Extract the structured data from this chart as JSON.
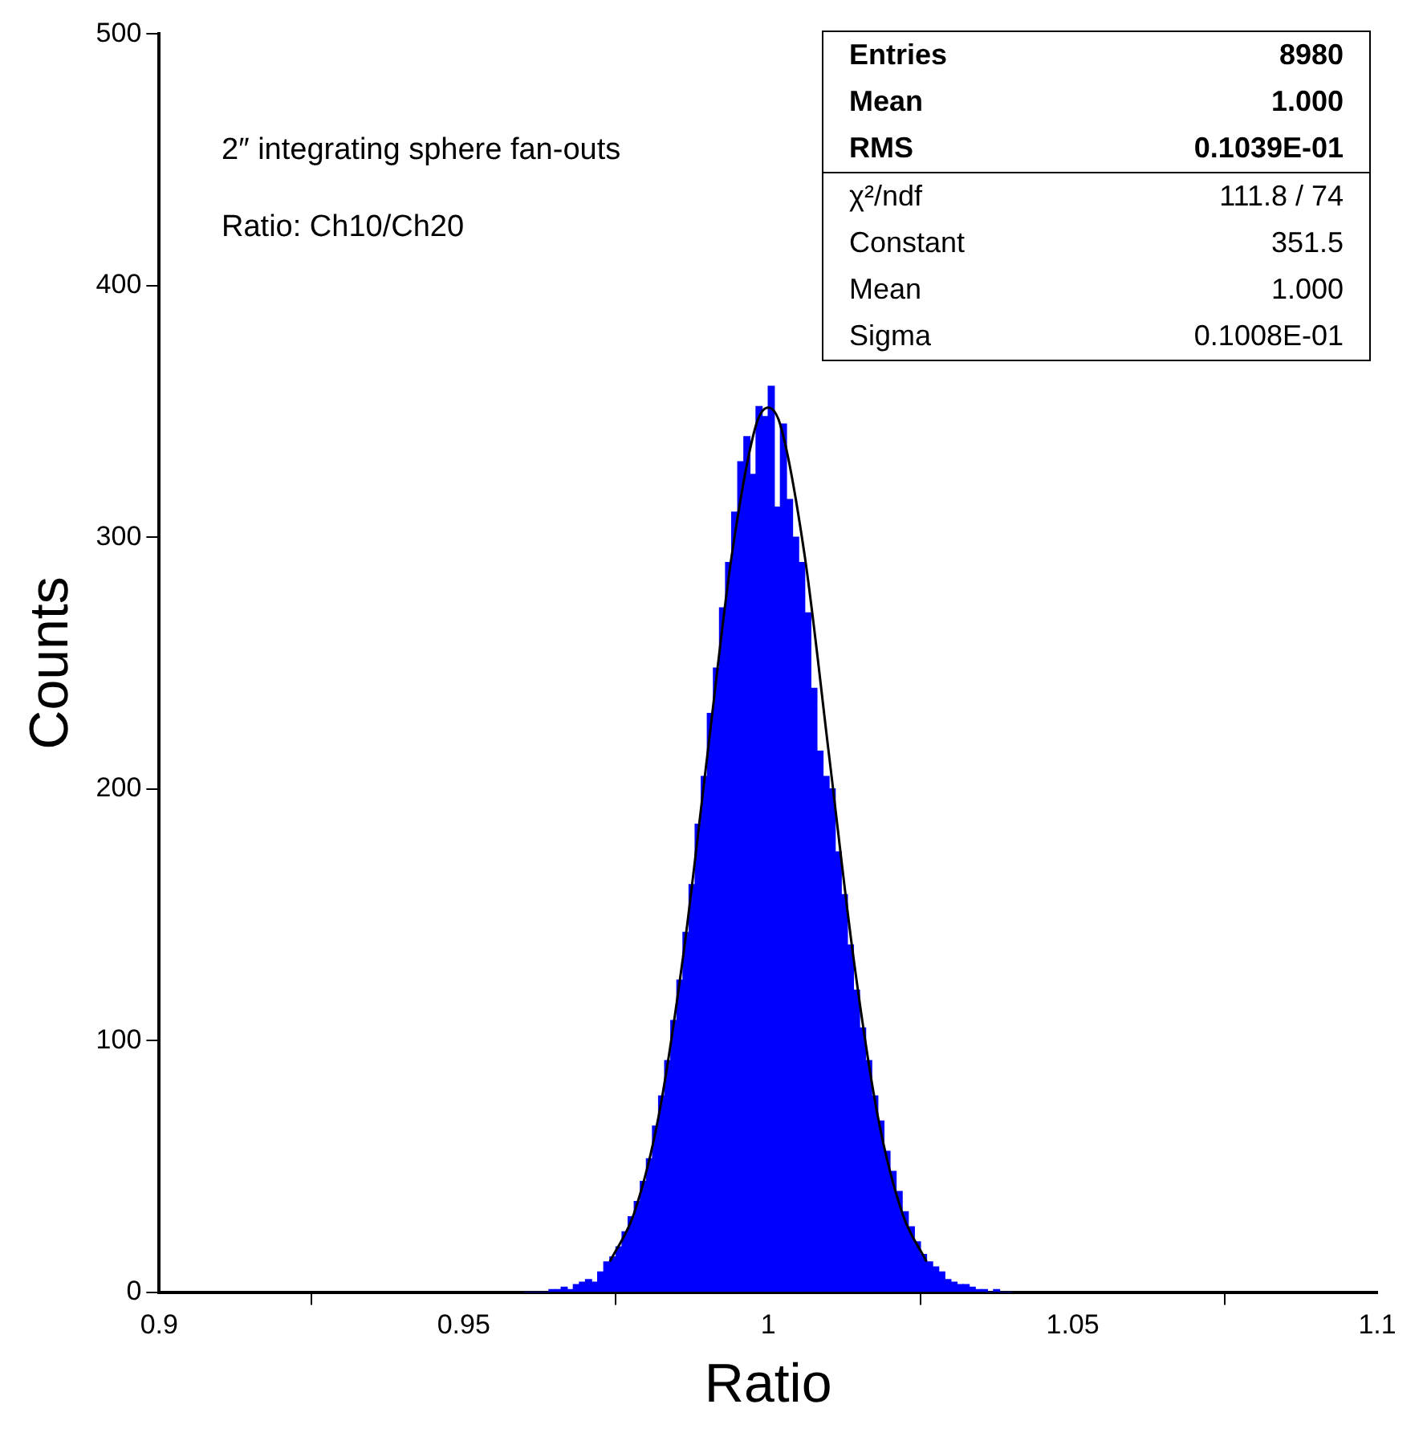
{
  "chart_data": {
    "type": "histogram",
    "xlabel": "Ratio",
    "ylabel": "Counts",
    "bins": [
      0.96,
      0.961,
      0.962,
      0.963,
      0.964,
      0.965,
      0.966,
      0.967,
      0.968,
      0.969,
      0.97,
      0.971,
      0.972,
      0.973,
      0.974,
      0.975,
      0.976,
      0.977,
      0.978,
      0.979,
      0.98,
      0.981,
      0.982,
      0.983,
      0.984,
      0.985,
      0.986,
      0.987,
      0.988,
      0.989,
      0.99,
      0.991,
      0.992,
      0.993,
      0.994,
      0.995,
      0.996,
      0.997,
      0.998,
      0.999,
      1.0,
      1.001,
      1.002,
      1.003,
      1.004,
      1.005,
      1.006,
      1.007,
      1.008,
      1.009,
      1.01,
      1.011,
      1.012,
      1.013,
      1.014,
      1.015,
      1.016,
      1.017,
      1.018,
      1.019,
      1.02,
      1.021,
      1.022,
      1.023,
      1.024,
      1.025,
      1.026,
      1.027,
      1.028,
      1.029,
      1.03,
      1.031,
      1.032,
      1.033,
      1.034,
      1.035,
      1.036,
      1.037,
      1.038,
      1.039,
      1.04
    ],
    "values": [
      0,
      0,
      0,
      0,
      1,
      1,
      2,
      1,
      3,
      4,
      5,
      4,
      8,
      12,
      14,
      18,
      24,
      30,
      36,
      44,
      53,
      66,
      78,
      92,
      108,
      124,
      143,
      162,
      186,
      205,
      230,
      248,
      272,
      290,
      310,
      330,
      340,
      325,
      352,
      348,
      360,
      312,
      345,
      315,
      300,
      290,
      270,
      240,
      215,
      205,
      200,
      175,
      158,
      138,
      120,
      105,
      92,
      78,
      68,
      56,
      48,
      40,
      32,
      26,
      20,
      15,
      12,
      10,
      8,
      5,
      4,
      3,
      3,
      2,
      1,
      1,
      0,
      1,
      0,
      0
    ],
    "color": "#0000ff",
    "series": [
      {
        "type": "line",
        "color": "#000000",
        "x": [
          0.974,
          0.978,
          0.982,
          0.986,
          0.99,
          0.994,
          0.998,
          1.0,
          1.002,
          1.006,
          1.01,
          1.014,
          1.018,
          1.022,
          1.026
        ],
        "values": [
          12.1,
          31.5,
          69.8,
          132.9,
          213.2,
          292.5,
          344.6,
          351.5,
          344.6,
          292.5,
          213.2,
          132.9,
          69.8,
          31.5,
          12.1
        ]
      }
    ],
    "xlim": [
      0.9,
      1.1
    ],
    "xticks": [
      0.9,
      0.95,
      1,
      1.05,
      1.1
    ],
    "ylim": [
      0,
      500
    ],
    "yticks": [
      0,
      100,
      200,
      300,
      400,
      500
    ],
    "grid": false,
    "legend": false,
    "marker": "none",
    "annotations": [
      "2″ integrating sphere fan-outs",
      "Ratio: Ch10/Ch20",
      "Entries  8980",
      "Mean  1.000",
      "RMS  0.1039E-01",
      "χ²/ndf  111.8 / 74",
      "Constant  351.5",
      "Mean  1.000",
      "Sigma  0.1008E-01"
    ]
  }
}
